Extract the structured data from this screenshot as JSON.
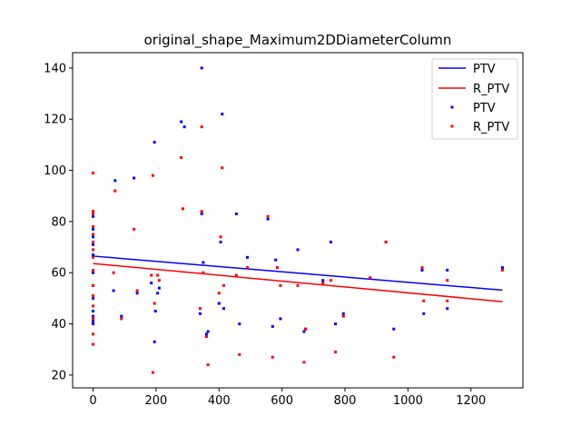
{
  "chart_data": {
    "type": "scatter",
    "title": "original_shape_Maximum2DDiameterColumn",
    "xlabel": "",
    "ylabel": "",
    "xlim": [
      -65,
      1365
    ],
    "ylim": [
      15,
      146
    ],
    "xticks": [
      0,
      200,
      400,
      600,
      800,
      1000,
      1200
    ],
    "yticks": [
      20,
      40,
      60,
      80,
      100,
      120,
      140
    ],
    "grid": false,
    "legend_position": "upper-right",
    "legend": [
      "PTV",
      "R_PTV",
      "PTV",
      "R_PTV"
    ],
    "colors": {
      "PTV": "#0000ff",
      "R_PTV": "#ff0000"
    },
    "series": [
      {
        "name": "PTV",
        "kind": "line",
        "color": "#0000ff",
        "x": [
          0,
          1300
        ],
        "y": [
          66.5,
          53.2
        ]
      },
      {
        "name": "R_PTV",
        "kind": "line",
        "color": "#ff0000",
        "x": [
          0,
          1300
        ],
        "y": [
          63.6,
          48.7
        ]
      },
      {
        "name": "PTV",
        "kind": "scatter",
        "color": "#0000ff",
        "points": [
          [
            0,
            82
          ],
          [
            0,
            77
          ],
          [
            0,
            74
          ],
          [
            0,
            71
          ],
          [
            0,
            67
          ],
          [
            0,
            60
          ],
          [
            0,
            55
          ],
          [
            0,
            50
          ],
          [
            0,
            45
          ],
          [
            0,
            43
          ],
          [
            0,
            41
          ],
          [
            0,
            40
          ],
          [
            70,
            96
          ],
          [
            65,
            53
          ],
          [
            90,
            43
          ],
          [
            130,
            97
          ],
          [
            140,
            52
          ],
          [
            185,
            56
          ],
          [
            195,
            111
          ],
          [
            195,
            33
          ],
          [
            198,
            45
          ],
          [
            205,
            52
          ],
          [
            210,
            54
          ],
          [
            280,
            119
          ],
          [
            290,
            117
          ],
          [
            340,
            44
          ],
          [
            345,
            140
          ],
          [
            345,
            83
          ],
          [
            350,
            64
          ],
          [
            360,
            36
          ],
          [
            365,
            37
          ],
          [
            400,
            48
          ],
          [
            405,
            72
          ],
          [
            410,
            122
          ],
          [
            415,
            46
          ],
          [
            455,
            83
          ],
          [
            465,
            40
          ],
          [
            490,
            66
          ],
          [
            555,
            81
          ],
          [
            570,
            39
          ],
          [
            580,
            65
          ],
          [
            595,
            42
          ],
          [
            650,
            69
          ],
          [
            670,
            37
          ],
          [
            675,
            38
          ],
          [
            730,
            57
          ],
          [
            755,
            72
          ],
          [
            770,
            40
          ],
          [
            795,
            44
          ],
          [
            880,
            58
          ],
          [
            930,
            72
          ],
          [
            955,
            38
          ],
          [
            1045,
            61
          ],
          [
            1050,
            44
          ],
          [
            1125,
            61
          ],
          [
            1125,
            46
          ],
          [
            1300,
            62
          ]
        ]
      },
      {
        "name": "R_PTV",
        "kind": "scatter",
        "color": "#ff0000",
        "points": [
          [
            0,
            99
          ],
          [
            0,
            84
          ],
          [
            0,
            83
          ],
          [
            0,
            78
          ],
          [
            0,
            75
          ],
          [
            0,
            72
          ],
          [
            0,
            69
          ],
          [
            0,
            66
          ],
          [
            0,
            61
          ],
          [
            0,
            55
          ],
          [
            0,
            51
          ],
          [
            0,
            47
          ],
          [
            0,
            42
          ],
          [
            0,
            36
          ],
          [
            0,
            32
          ],
          [
            70,
            92
          ],
          [
            65,
            60
          ],
          [
            90,
            42
          ],
          [
            130,
            77
          ],
          [
            140,
            53
          ],
          [
            185,
            59
          ],
          [
            190,
            98
          ],
          [
            190,
            21
          ],
          [
            195,
            48
          ],
          [
            205,
            59
          ],
          [
            210,
            57
          ],
          [
            280,
            105
          ],
          [
            285,
            85
          ],
          [
            340,
            46
          ],
          [
            345,
            117
          ],
          [
            345,
            84
          ],
          [
            350,
            60
          ],
          [
            360,
            35
          ],
          [
            365,
            24
          ],
          [
            400,
            52
          ],
          [
            405,
            74
          ],
          [
            410,
            101
          ],
          [
            415,
            55
          ],
          [
            455,
            59
          ],
          [
            465,
            28
          ],
          [
            490,
            62
          ],
          [
            555,
            82
          ],
          [
            570,
            27
          ],
          [
            585,
            62
          ],
          [
            595,
            55
          ],
          [
            650,
            55
          ],
          [
            670,
            25
          ],
          [
            675,
            38
          ],
          [
            730,
            56
          ],
          [
            755,
            57
          ],
          [
            770,
            29
          ],
          [
            795,
            43
          ],
          [
            880,
            58
          ],
          [
            930,
            72
          ],
          [
            955,
            27
          ],
          [
            1045,
            62
          ],
          [
            1050,
            49
          ],
          [
            1125,
            57
          ],
          [
            1125,
            49
          ],
          [
            1300,
            61
          ]
        ]
      }
    ]
  }
}
